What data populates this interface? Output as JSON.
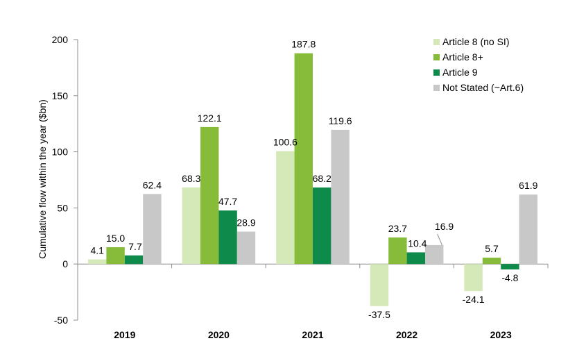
{
  "chart_data": {
    "type": "bar",
    "title": "",
    "xlabel": "",
    "ylabel": "Cumulative flow within the year ($bn)",
    "categories": [
      "2019",
      "2020",
      "2021",
      "2022",
      "2023"
    ],
    "series": [
      {
        "name": "Article 8 (no SI)",
        "color": "#d5e8b8",
        "values": [
          4.1,
          68.3,
          100.6,
          -37.5,
          -24.1
        ]
      },
      {
        "name": "Article 8+",
        "color": "#86bc39",
        "values": [
          15.0,
          122.1,
          187.8,
          23.7,
          5.7
        ]
      },
      {
        "name": "Article 9",
        "color": "#0e8a4a",
        "values": [
          7.7,
          47.7,
          68.2,
          10.4,
          -4.8
        ]
      },
      {
        "name": "Not Stated (~Art.6)",
        "color": "#c8c8c8",
        "values": [
          62.4,
          28.9,
          119.6,
          16.9,
          61.9
        ]
      }
    ],
    "data_labels": [
      [
        "4.1",
        "68.3",
        "100.6",
        "-37.5",
        "-24.1"
      ],
      [
        "15.0",
        "122.1",
        "187.8",
        "23.7",
        "5.7"
      ],
      [
        "7.7",
        "47.7",
        "68.2",
        "10.4",
        "-4.8"
      ],
      [
        "62.4",
        "28.9",
        "119.6",
        "16.9",
        "61.9"
      ]
    ],
    "ylim": [
      -50,
      200
    ],
    "yticks": [
      "-50",
      "0",
      "50",
      "100",
      "150",
      "200"
    ],
    "grid": false,
    "legend": "top-right"
  }
}
